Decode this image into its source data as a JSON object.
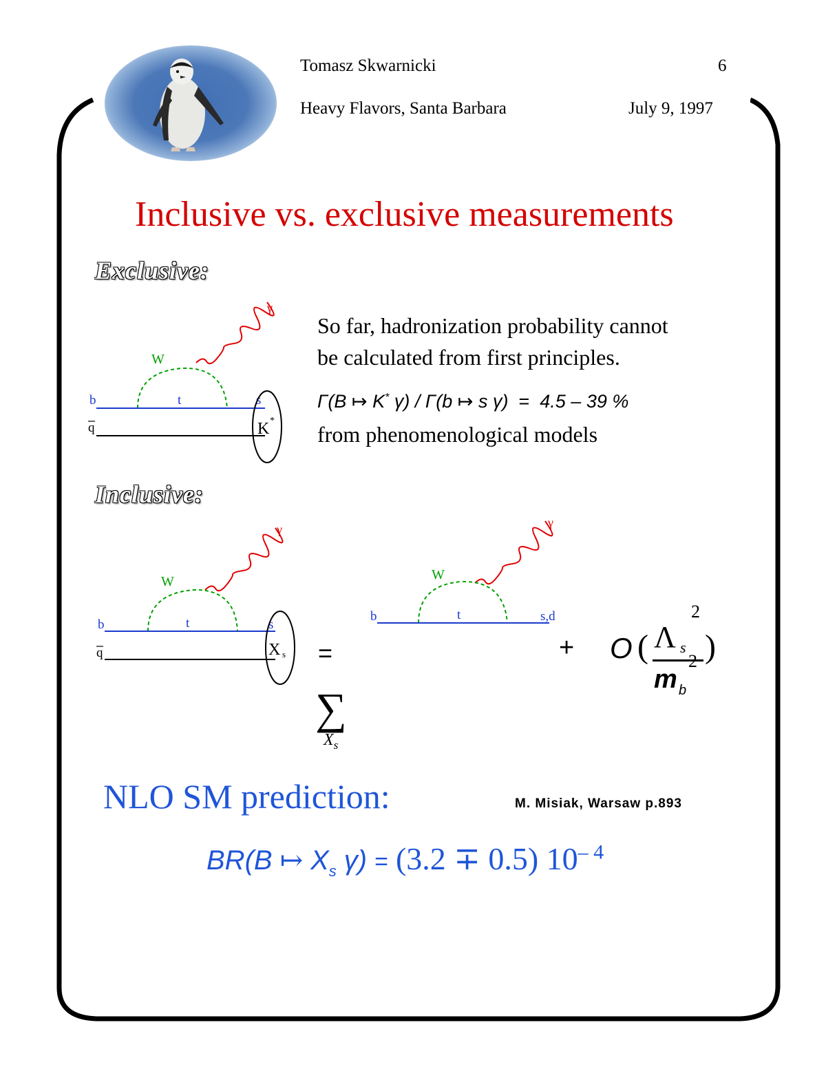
{
  "header": {
    "author": "Tomasz Skwarnicki",
    "page_number": "6",
    "conference": "Heavy Flavors, Santa Barbara",
    "date": "July 9, 1997"
  },
  "logo": {
    "icon": "penguin-icon"
  },
  "title": "Inclusive vs. exclusive measurements",
  "exclusive": {
    "heading": "Exclusive:",
    "text_line1": "So far, hadronization probability cannot",
    "text_line2": "be calculated from first principles.",
    "formula": {
      "gamma1": "Γ(B",
      "arrow": "↦",
      "kstar": "K",
      "star": "*",
      "gamma_photon": "γ)",
      "slash": "/",
      "gamma2": "Γ(b",
      "arrow2": "↦",
      "s": "s",
      "photon2": "γ)",
      "equals": "=",
      "range": "4.5 – 39 %"
    },
    "text_line3": "from phenomenological models",
    "diagram": {
      "gamma": "γ",
      "w": "W",
      "b": "b",
      "t": "t",
      "s": "s",
      "qbar": "q",
      "meson": "K",
      "meson_sup": "*"
    }
  },
  "inclusive": {
    "heading": "Inclusive:",
    "diagram_left": {
      "gamma": "γ",
      "w": "W",
      "b": "b",
      "t": "t",
      "s": "s",
      "qbar": "q",
      "meson": "X",
      "meson_sub": "s"
    },
    "equals": "=",
    "sum_symbol": "∑",
    "sum_index": "X",
    "sum_index_sub": "s",
    "diagram_right": {
      "gamma": "γ",
      "w": "W",
      "b": "b",
      "t": "t",
      "sd": "s,d"
    },
    "plus": "+",
    "order": {
      "O": "O",
      "open": "(",
      "lambda": "Λ",
      "lambda_sub": "s",
      "lambda_sup": "2",
      "m": "m",
      "m_sub": "b",
      "m_sup": "2",
      "close": ")"
    }
  },
  "nlo": {
    "heading": "NLO SM prediction:",
    "reference": "M. Misiak, Warsaw p.893",
    "br_lhs": "BR(B",
    "br_arrow": "↦",
    "br_x": "X",
    "br_sub": "s",
    "br_gamma": "γ)",
    "br_equals": "=",
    "br_value": "(3.2 ∓ 0.5) 10",
    "br_exp": "– 4"
  }
}
